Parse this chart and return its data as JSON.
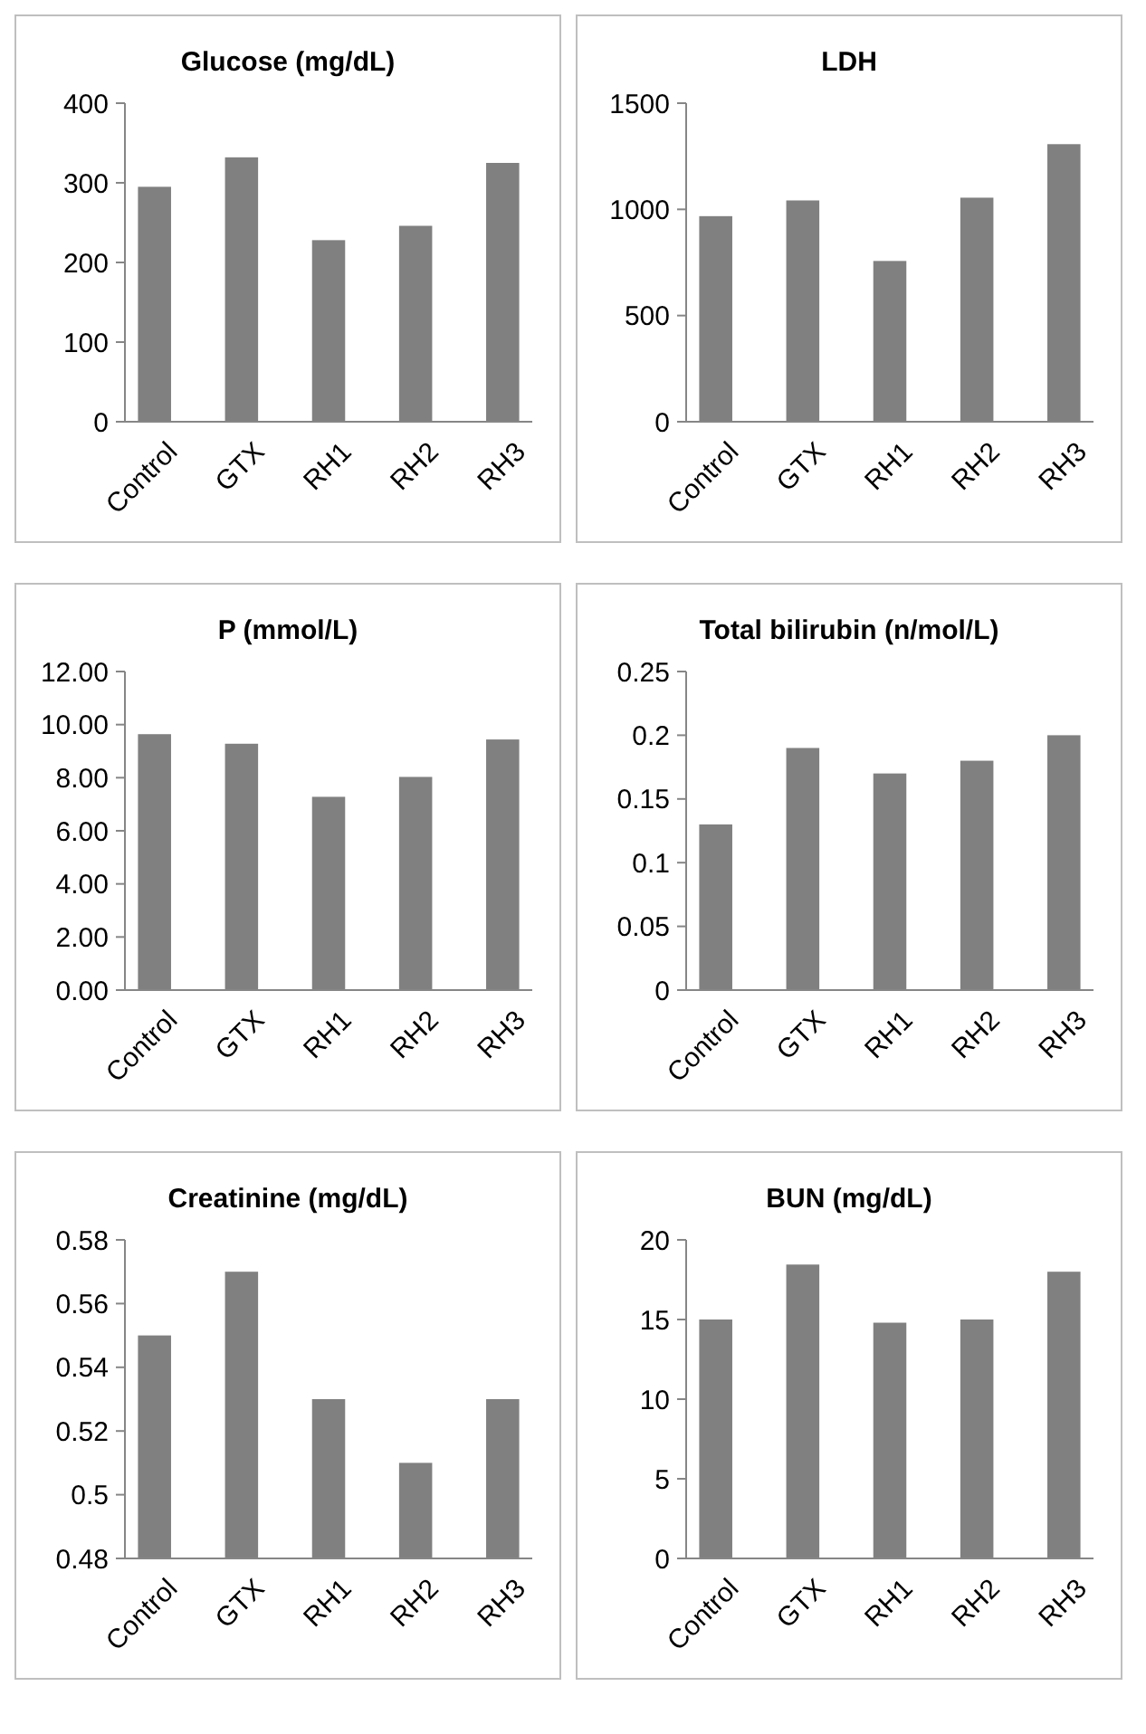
{
  "chart_data": [
    {
      "type": "bar",
      "title": "Glucose (mg/dL)",
      "categories": [
        "Control",
        "GTX",
        "RH1",
        "RH2",
        "RH3"
      ],
      "values": [
        295,
        332,
        228,
        246,
        325
      ],
      "color": "#808080",
      "ylim": [
        0,
        400
      ],
      "yticks": [
        0,
        100,
        200,
        300,
        400
      ],
      "grid": false
    },
    {
      "type": "bar",
      "title": "LDH",
      "categories": [
        "Control",
        "GTX",
        "RH1",
        "RH2",
        "RH3"
      ],
      "values": [
        968,
        1042,
        757,
        1055,
        1307
      ],
      "color": "#808080",
      "ylim": [
        0,
        1500
      ],
      "yticks": [
        0,
        500,
        1000,
        1500
      ],
      "grid": false
    },
    {
      "type": "bar",
      "title": "P (mmol/L)",
      "categories": [
        "Control",
        "GTX",
        "RH1",
        "RH2",
        "RH3"
      ],
      "values": [
        9.64,
        9.28,
        7.28,
        8.03,
        9.44
      ],
      "color": "#808080",
      "ylim": [
        0,
        12
      ],
      "yticks": [
        {
          "value": 0,
          "label": "0.00"
        },
        {
          "value": 2,
          "label": "2.00"
        },
        {
          "value": 4,
          "label": "4.00"
        },
        {
          "value": 6,
          "label": "6.00"
        },
        {
          "value": 8,
          "label": "8.00"
        },
        {
          "value": 10,
          "label": "10.00"
        },
        {
          "value": 12,
          "label": "12.00"
        }
      ],
      "grid": false
    },
    {
      "type": "bar",
      "title": "Total bilirubin (n/mol/L)",
      "categories": [
        "Control",
        "GTX",
        "RH1",
        "RH2",
        "RH3"
      ],
      "values": [
        0.13,
        0.19,
        0.17,
        0.18,
        0.2
      ],
      "color": "#808080",
      "ylim": [
        0,
        0.25
      ],
      "yticks": [
        0,
        0.05,
        0.1,
        0.15,
        0.2,
        0.25
      ],
      "grid": false
    },
    {
      "type": "bar",
      "title": "Creatinine (mg/dL)",
      "categories": [
        "Control",
        "GTX",
        "RH1",
        "RH2",
        "RH3"
      ],
      "values": [
        0.55,
        0.57,
        0.53,
        0.51,
        0.53
      ],
      "color": "#808080",
      "ylim": [
        0.48,
        0.58
      ],
      "yticks": [
        0.48,
        0.5,
        0.52,
        0.54,
        0.56,
        0.58
      ],
      "grid": false
    },
    {
      "type": "bar",
      "title": "BUN (mg/dL)",
      "categories": [
        "Control",
        "GTX",
        "RH1",
        "RH2",
        "RH3"
      ],
      "values": [
        15,
        18.45,
        14.8,
        15,
        18
      ],
      "color": "#808080",
      "ylim": [
        0,
        20
      ],
      "yticks": [
        0,
        5,
        10,
        15,
        20
      ],
      "grid": false
    }
  ]
}
